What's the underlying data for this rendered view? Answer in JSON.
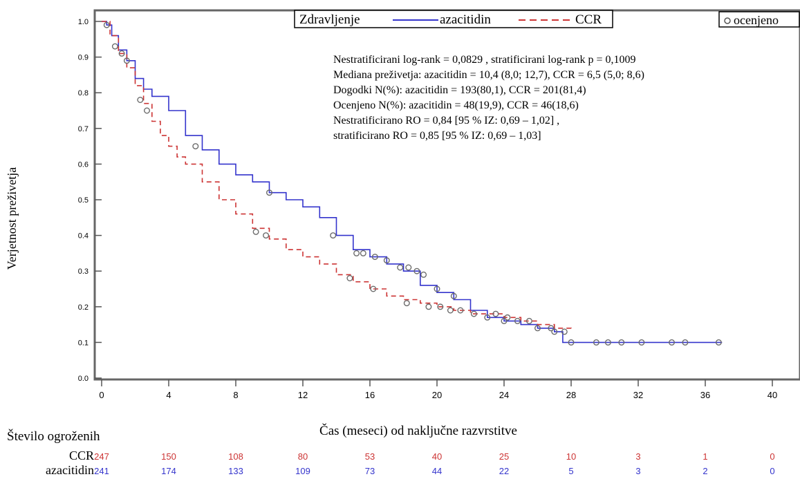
{
  "chart_data": {
    "type": "line",
    "subtype": "kaplan-meier",
    "ylabel": "Verjetnost  preživetja",
    "xlabel": "Čas (meseci) od naključne razvrstitve",
    "xlim": [
      0,
      40
    ],
    "ylim": [
      0,
      1
    ],
    "xticks": [
      "0",
      "4",
      "8",
      "12",
      "16",
      "20",
      "24",
      "28",
      "32",
      "36",
      "40"
    ],
    "yticks": [
      "0.0",
      "0.1",
      "0.2",
      "0.3",
      "0.4",
      "0.5",
      "0.6",
      "0.7",
      "0.8",
      "0.9",
      "1.0"
    ],
    "grid": false,
    "legend": {
      "title": "Zdravljenje",
      "placement": "top-center",
      "entries": [
        "azacitidin",
        "CCR"
      ],
      "censored_label": "ocenjeno"
    },
    "annotations": [
      "Nestratificirani log-rank = 0,0829 , stratificirani log-rank p = 0,1009",
      "Mediana preživetja: azacitidin = 10,4 (8,0; 12,7), CCR = 6,5 (5,0; 8,6)",
      "Dogodki N(%): azacitidin = 193(80,1), CCR = 201(81,4)",
      "Ocenjeno N(%): azacitidin = 48(19,9), CCR = 46(18,6)",
      "Nestratificirano RO = 0,84 [95 % IZ: 0,69 – 1,02] ,",
      "stratificirano RO = 0,85 [95 % IZ: 0,69 – 1,03]"
    ],
    "series": [
      {
        "name": "azacitidin",
        "color": "#3333cc",
        "style": "solid",
        "points": [
          [
            0,
            1.0
          ],
          [
            0.3,
            0.99
          ],
          [
            0.6,
            0.96
          ],
          [
            1.0,
            0.92
          ],
          [
            1.5,
            0.89
          ],
          [
            2.0,
            0.84
          ],
          [
            2.5,
            0.81
          ],
          [
            3.0,
            0.79
          ],
          [
            4.0,
            0.75
          ],
          [
            5.0,
            0.68
          ],
          [
            6.0,
            0.64
          ],
          [
            7.0,
            0.6
          ],
          [
            8.0,
            0.57
          ],
          [
            9.0,
            0.55
          ],
          [
            10.0,
            0.52
          ],
          [
            11.0,
            0.5
          ],
          [
            12.0,
            0.48
          ],
          [
            13.0,
            0.45
          ],
          [
            14.0,
            0.4
          ],
          [
            15.0,
            0.36
          ],
          [
            16.0,
            0.34
          ],
          [
            17.0,
            0.32
          ],
          [
            18.0,
            0.3
          ],
          [
            19.0,
            0.26
          ],
          [
            20.0,
            0.24
          ],
          [
            21.0,
            0.22
          ],
          [
            22.0,
            0.19
          ],
          [
            23.0,
            0.17
          ],
          [
            24.0,
            0.16
          ],
          [
            25.0,
            0.15
          ],
          [
            26.0,
            0.14
          ],
          [
            27.0,
            0.13
          ],
          [
            27.5,
            0.1
          ],
          [
            37.0,
            0.1
          ]
        ],
        "censored": [
          [
            1.2,
            0.91
          ],
          [
            1.5,
            0.89
          ],
          [
            5.6,
            0.65
          ],
          [
            10.0,
            0.52
          ],
          [
            13.8,
            0.4
          ],
          [
            15.2,
            0.35
          ],
          [
            15.6,
            0.35
          ],
          [
            16.3,
            0.34
          ],
          [
            17.0,
            0.33
          ],
          [
            17.8,
            0.31
          ],
          [
            18.3,
            0.31
          ],
          [
            18.8,
            0.3
          ],
          [
            19.2,
            0.29
          ],
          [
            20.0,
            0.25
          ],
          [
            21.0,
            0.23
          ],
          [
            23.0,
            0.17
          ],
          [
            24.0,
            0.16
          ],
          [
            24.8,
            0.16
          ],
          [
            26.0,
            0.14
          ],
          [
            27.0,
            0.13
          ],
          [
            28.0,
            0.1
          ],
          [
            29.5,
            0.1
          ],
          [
            30.2,
            0.1
          ],
          [
            31.0,
            0.1
          ],
          [
            32.2,
            0.1
          ],
          [
            34.0,
            0.1
          ],
          [
            34.8,
            0.1
          ],
          [
            36.8,
            0.1
          ]
        ]
      },
      {
        "name": "CCR",
        "color": "#cc3333",
        "style": "dashed",
        "points": [
          [
            0,
            1.0
          ],
          [
            0.5,
            0.96
          ],
          [
            1.0,
            0.91
          ],
          [
            1.5,
            0.87
          ],
          [
            2.0,
            0.82
          ],
          [
            2.5,
            0.77
          ],
          [
            3.0,
            0.72
          ],
          [
            3.5,
            0.68
          ],
          [
            4.0,
            0.65
          ],
          [
            4.5,
            0.62
          ],
          [
            5.0,
            0.6
          ],
          [
            6.0,
            0.55
          ],
          [
            7.0,
            0.5
          ],
          [
            8.0,
            0.46
          ],
          [
            9.0,
            0.42
          ],
          [
            10.0,
            0.39
          ],
          [
            11.0,
            0.36
          ],
          [
            12.0,
            0.34
          ],
          [
            13.0,
            0.32
          ],
          [
            14.0,
            0.29
          ],
          [
            15.0,
            0.27
          ],
          [
            16.0,
            0.25
          ],
          [
            17.0,
            0.23
          ],
          [
            18.0,
            0.22
          ],
          [
            19.0,
            0.21
          ],
          [
            20.0,
            0.2
          ],
          [
            21.0,
            0.19
          ],
          [
            22.0,
            0.18
          ],
          [
            23.0,
            0.18
          ],
          [
            24.0,
            0.17
          ],
          [
            25.0,
            0.16
          ],
          [
            26.0,
            0.15
          ],
          [
            27.0,
            0.14
          ],
          [
            28.0,
            0.13
          ]
        ],
        "censored": [
          [
            0.3,
            0.99
          ],
          [
            0.8,
            0.93
          ],
          [
            2.3,
            0.78
          ],
          [
            2.7,
            0.75
          ],
          [
            9.2,
            0.41
          ],
          [
            9.8,
            0.4
          ],
          [
            14.8,
            0.28
          ],
          [
            16.2,
            0.25
          ],
          [
            18.2,
            0.21
          ],
          [
            19.5,
            0.2
          ],
          [
            20.2,
            0.2
          ],
          [
            20.8,
            0.19
          ],
          [
            21.4,
            0.19
          ],
          [
            22.2,
            0.18
          ],
          [
            23.5,
            0.18
          ],
          [
            24.2,
            0.17
          ],
          [
            25.5,
            0.16
          ],
          [
            26.8,
            0.14
          ],
          [
            27.6,
            0.13
          ]
        ]
      }
    ]
  },
  "risk_table": {
    "title": "Število ogroženih",
    "rows": [
      {
        "label": "CCR",
        "color": "#cc3333",
        "values": [
          "247",
          "150",
          "108",
          "80",
          "53",
          "40",
          "25",
          "10",
          "3",
          "1",
          "0"
        ]
      },
      {
        "label": "azacitidin",
        "color": "#3333cc",
        "values": [
          "241",
          "174",
          "133",
          "109",
          "73",
          "44",
          "22",
          "5",
          "3",
          "2",
          "0"
        ]
      }
    ]
  }
}
